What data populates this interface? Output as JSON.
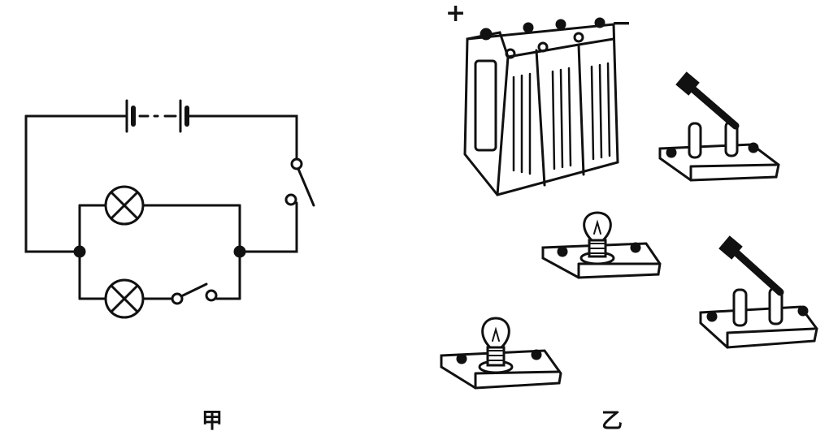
{
  "captions": {
    "left": "甲",
    "right": "乙"
  },
  "battery_terminals": {
    "positive": "+",
    "negative": "−"
  },
  "components": {
    "left_diagram": [
      "battery-cells",
      "main-switch",
      "lamp-1",
      "lamp-2",
      "branch-switch",
      "junction-left",
      "junction-right"
    ],
    "right_picture": [
      "battery-pack",
      "knife-switch-1",
      "knife-switch-2",
      "lamp-on-base-1",
      "lamp-on-base-2"
    ]
  },
  "colors": {
    "ink": "#111111",
    "background": "#ffffff"
  }
}
